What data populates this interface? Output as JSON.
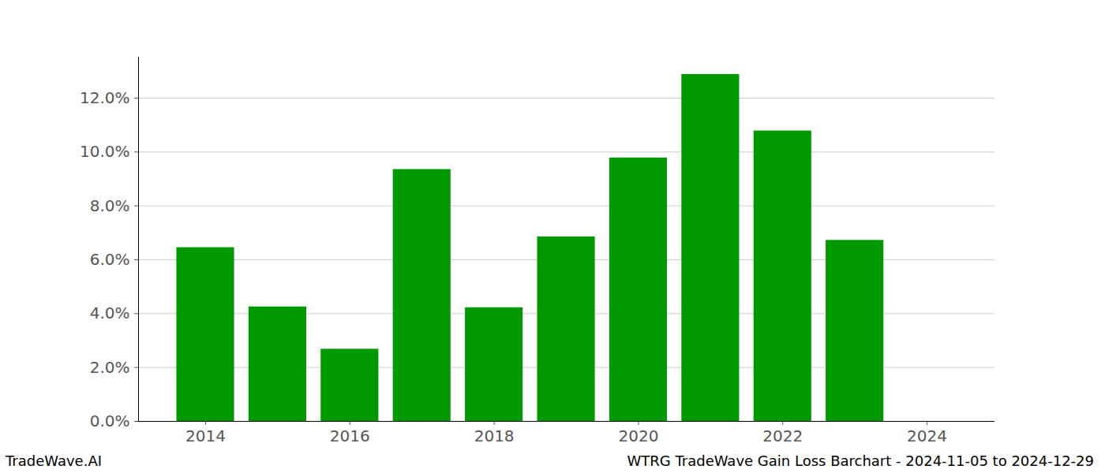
{
  "chart_data": {
    "type": "bar",
    "title": "WTRG TradeWave Gain Loss Barchart - 2024-11-05 to 2024-12-29",
    "source": "TradeWave.AI",
    "x": [
      2014,
      2015,
      2016,
      2017,
      2018,
      2019,
      2020,
      2021,
      2022,
      2023
    ],
    "values": [
      6.45,
      4.25,
      2.68,
      9.35,
      4.22,
      6.85,
      9.78,
      12.88,
      10.78,
      6.72
    ],
    "color": "#009900",
    "xlim": [
      2013.07,
      2024.94
    ],
    "xticks": [
      2014,
      2016,
      2018,
      2020,
      2022,
      2024
    ],
    "ylim": [
      0,
      13.52
    ],
    "yticks": [
      {
        "value": 0,
        "label": "0.0%"
      },
      {
        "value": 2,
        "label": "2.0%"
      },
      {
        "value": 4,
        "label": "4.0%"
      },
      {
        "value": 6,
        "label": "6.0%"
      },
      {
        "value": 8,
        "label": "8.0%"
      },
      {
        "value": 10,
        "label": "10.0%"
      },
      {
        "value": 12,
        "label": "12.0%"
      }
    ],
    "grid": true
  }
}
